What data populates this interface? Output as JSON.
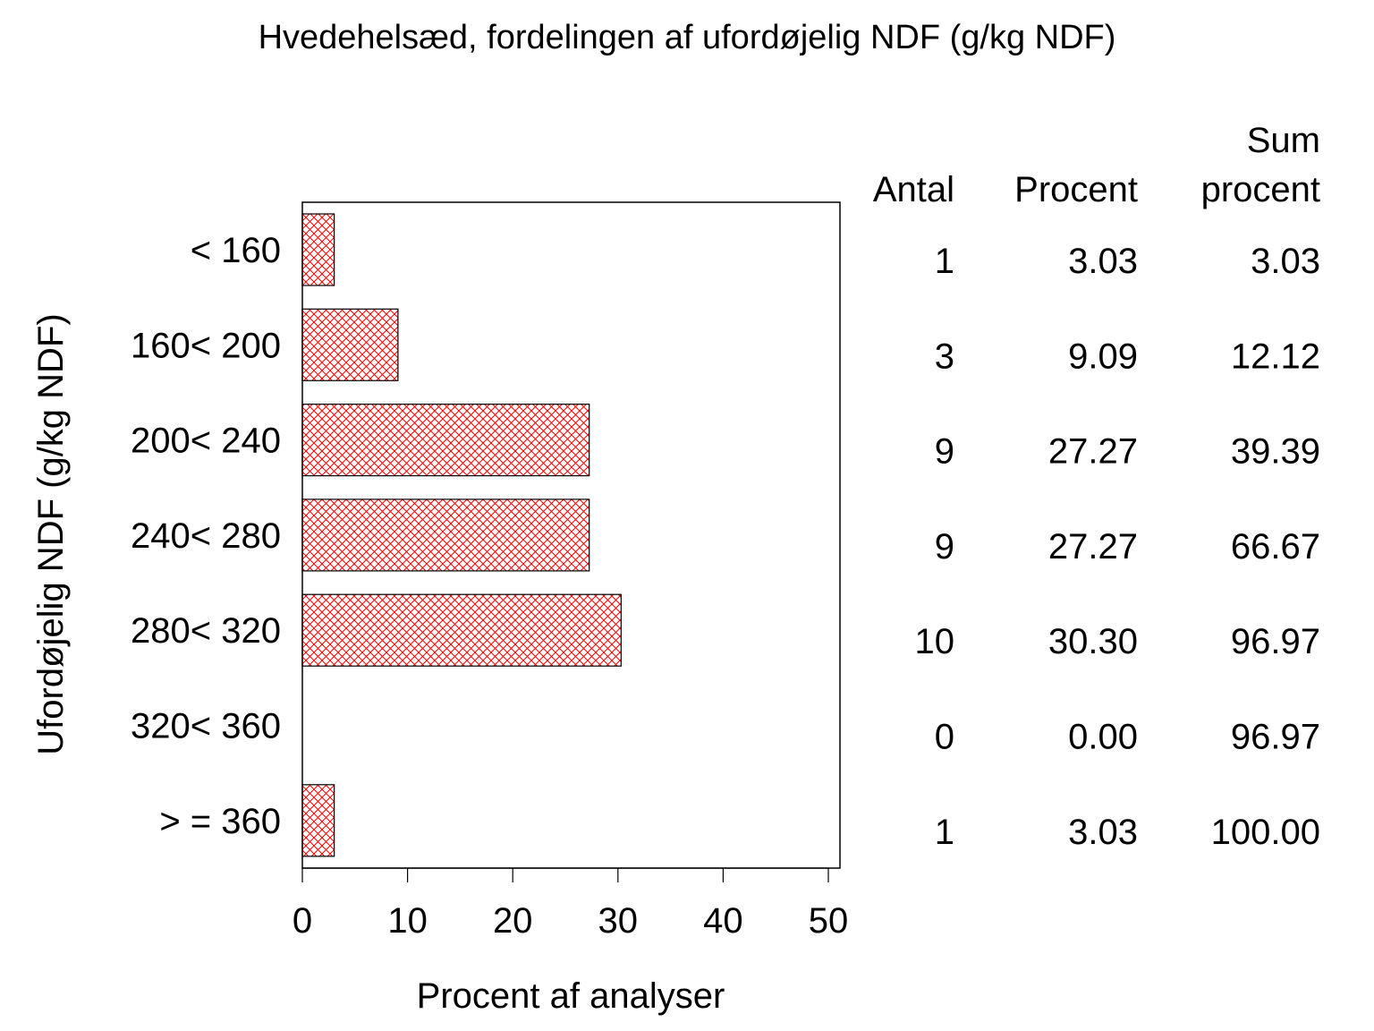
{
  "chart_data": {
    "type": "bar",
    "orientation": "horizontal",
    "title": "Hvedehelsæd, fordelingen af ufordøjelig NDF (g/kg NDF)",
    "xlabel": "Procent af analyser",
    "ylabel": "Ufordøjelig NDF (g/kg NDF)",
    "xlim": [
      0,
      50
    ],
    "xticks": [
      0,
      10,
      20,
      30,
      40,
      50
    ],
    "categories": [
      "< 160",
      "160< 200",
      "200< 240",
      "240< 280",
      "280< 320",
      "320< 360",
      "> = 360"
    ],
    "values": [
      3.03,
      9.09,
      27.27,
      27.27,
      30.3,
      0.0,
      3.03
    ],
    "bar_fill": "#ff0000",
    "bar_pattern": "crosshatch",
    "grid": false,
    "table": {
      "headers": [
        [
          "",
          "Antal"
        ],
        [
          "",
          "Procent"
        ],
        [
          "Sum",
          "procent"
        ]
      ],
      "rows": [
        [
          "1",
          "3.03",
          "3.03"
        ],
        [
          "3",
          "9.09",
          "12.12"
        ],
        [
          "9",
          "27.27",
          "39.39"
        ],
        [
          "9",
          "27.27",
          "66.67"
        ],
        [
          "10",
          "30.30",
          "96.97"
        ],
        [
          "0",
          "0.00",
          "96.97"
        ],
        [
          "1",
          "3.03",
          "100.00"
        ]
      ]
    }
  }
}
